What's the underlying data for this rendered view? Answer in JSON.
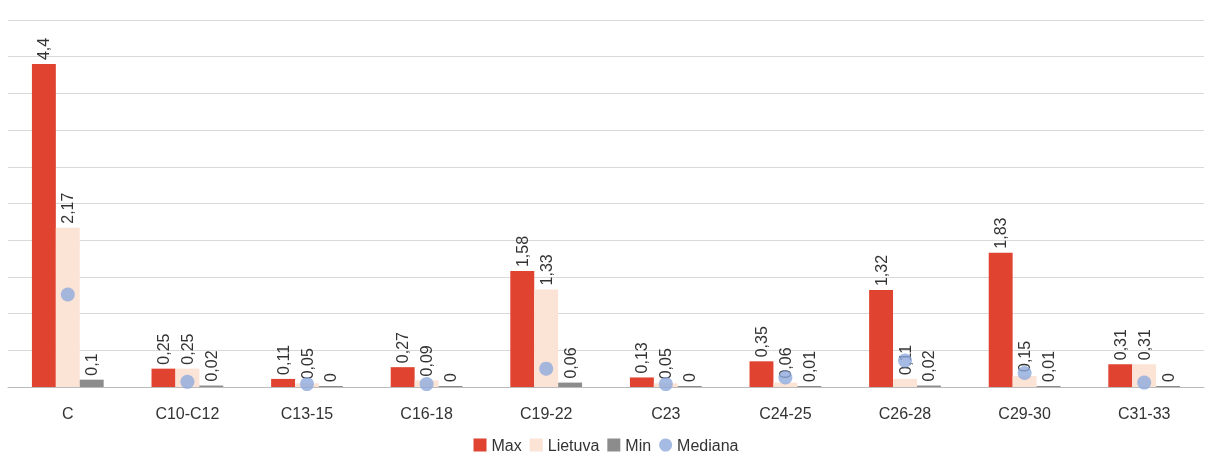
{
  "chart_data": {
    "type": "bar",
    "categories": [
      "C",
      "C10-C12",
      "C13-15",
      "C16-18",
      "C19-22",
      "C23",
      "C24-25",
      "C26-28",
      "C29-30",
      "C31-33"
    ],
    "series": [
      {
        "name": "Max",
        "color": "#e0432f",
        "values": [
          4.4,
          0.25,
          0.11,
          0.27,
          1.58,
          0.13,
          0.35,
          1.32,
          1.83,
          0.31
        ],
        "value_labels": [
          "4,4",
          "0,25",
          "0,11",
          "0,27",
          "1,58",
          "0,13",
          "0,35",
          "1,32",
          "1,83",
          "0,31"
        ]
      },
      {
        "name": "Lietuva",
        "color": "#fbe3d6",
        "values": [
          2.17,
          0.25,
          0.05,
          0.09,
          1.33,
          0.05,
          0.06,
          0.11,
          0.15,
          0.31
        ],
        "value_labels": [
          "2,17",
          "0,25",
          "0,05",
          "0,09",
          "1,33",
          "0,05",
          "0,06",
          "0,11",
          "0,15",
          "0,31"
        ]
      },
      {
        "name": "Min",
        "color": "#8c8c8c",
        "values": [
          0.1,
          0.02,
          0,
          0,
          0.06,
          0,
          0.01,
          0.02,
          0.01,
          0
        ],
        "value_labels": [
          "0,1",
          "0,02",
          "0",
          "0",
          "0,06",
          "0",
          "0,01",
          "0,02",
          "0,01",
          "0"
        ]
      },
      {
        "name": "Mediana",
        "type": "scatter",
        "marker": "circle",
        "color": "#8faadc",
        "x": [
          "C",
          "C10-C12",
          "C13-15",
          "C16-18",
          "C19-22",
          "C23",
          "C24-25",
          "C26-28",
          "C29-30",
          "C31-33"
        ],
        "values": [
          1.26,
          0.07,
          0.04,
          0.04,
          0.25,
          0.04,
          0.13,
          0.36,
          0.19,
          0.06
        ]
      }
    ],
    "ylim": [
      0,
      5
    ],
    "yticks": [
      {
        "value": 0,
        "label": null
      },
      {
        "value": 0.5,
        "label": null
      },
      {
        "value": 1,
        "label": null
      },
      {
        "value": 1.5,
        "label": null
      },
      {
        "value": 2,
        "label": null
      },
      {
        "value": 2.5,
        "label": null
      },
      {
        "value": 3,
        "label": null
      },
      {
        "value": 3.5,
        "label": null
      },
      {
        "value": 4,
        "label": null
      },
      {
        "value": 4.5,
        "label": null
      },
      {
        "value": 5,
        "label": null
      }
    ],
    "tick_labels": "x",
    "grid": "y",
    "legend": "bottom"
  }
}
